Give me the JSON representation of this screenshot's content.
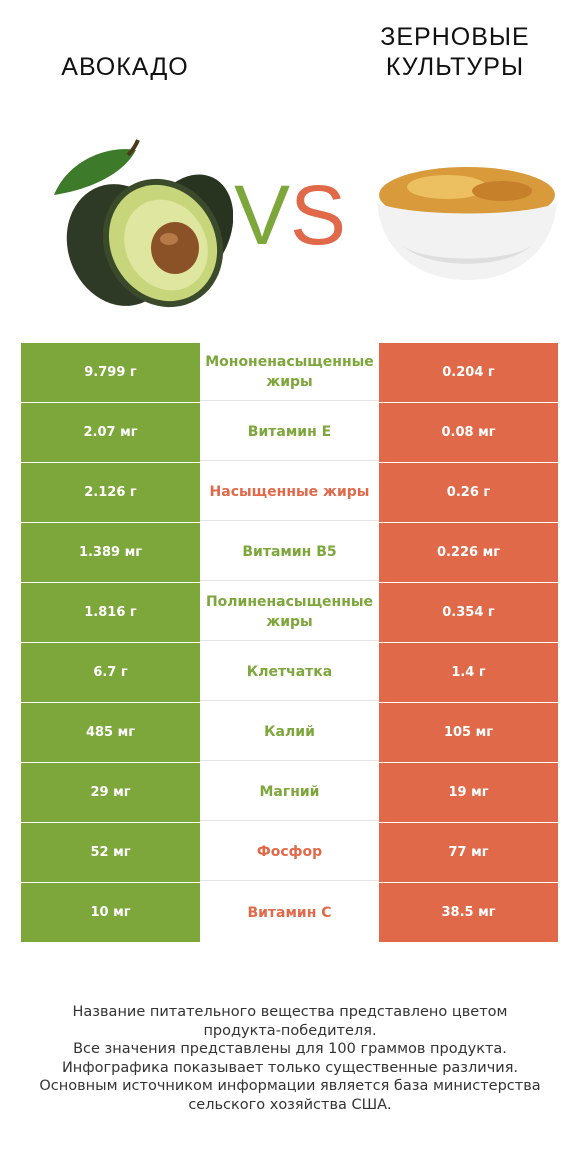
{
  "header": {
    "left_food": "АВОКАДО",
    "right_food": "ЗЕРНОВЫЕ КУЛЬТУРЫ",
    "vs_v": "V",
    "vs_s": "S"
  },
  "colors": {
    "left_winner": "#7da63b",
    "right_winner": "#e0694a"
  },
  "chart_data": {
    "type": "table",
    "series": [
      {
        "name": "АВОКАДО"
      },
      {
        "name": "ЗЕРНОВЫЕ КУЛЬТУРЫ"
      }
    ],
    "rows": [
      {
        "nutrient": "Мононенасыщенные жиры",
        "left": "9.799 г",
        "right": "0.204 г",
        "left_value": 9.799,
        "right_value": 0.204,
        "unit": "г",
        "winner": "left"
      },
      {
        "nutrient": "Витамин E",
        "left": "2.07 мг",
        "right": "0.08 мг",
        "left_value": 2.07,
        "right_value": 0.08,
        "unit": "мг",
        "winner": "left"
      },
      {
        "nutrient": "Насыщенные жиры",
        "left": "2.126 г",
        "right": "0.26 г",
        "left_value": 2.126,
        "right_value": 0.26,
        "unit": "г",
        "winner": "right"
      },
      {
        "nutrient": "Витамин B5",
        "left": "1.389 мг",
        "right": "0.226 мг",
        "left_value": 1.389,
        "right_value": 0.226,
        "unit": "мг",
        "winner": "left"
      },
      {
        "nutrient": "Полиненасыщенные жиры",
        "left": "1.816 г",
        "right": "0.354 г",
        "left_value": 1.816,
        "right_value": 0.354,
        "unit": "г",
        "winner": "left"
      },
      {
        "nutrient": "Клетчатка",
        "left": "6.7 г",
        "right": "1.4 г",
        "left_value": 6.7,
        "right_value": 1.4,
        "unit": "г",
        "winner": "left"
      },
      {
        "nutrient": "Калий",
        "left": "485 мг",
        "right": "105 мг",
        "left_value": 485,
        "right_value": 105,
        "unit": "мг",
        "winner": "left"
      },
      {
        "nutrient": "Магний",
        "left": "29 мг",
        "right": "19 мг",
        "left_value": 29,
        "right_value": 19,
        "unit": "мг",
        "winner": "left"
      },
      {
        "nutrient": "Фосфор",
        "left": "52 мг",
        "right": "77 мг",
        "left_value": 52,
        "right_value": 77,
        "unit": "мг",
        "winner": "right"
      },
      {
        "nutrient": "Витамин C",
        "left": "10 мг",
        "right": "38.5 мг",
        "left_value": 10,
        "right_value": 38.5,
        "unit": "мг",
        "winner": "right"
      }
    ]
  },
  "footnote": {
    "line1": "Название питательного вещества представлено цветом",
    "line2": "продукта-победителя.",
    "line3": "Все значения представлены для 100 граммов продукта.",
    "line4": "Инфографика показывает только существенные различия.",
    "line5": "Основным источником информации является база министерства",
    "line6": "сельского хозяйства США."
  }
}
